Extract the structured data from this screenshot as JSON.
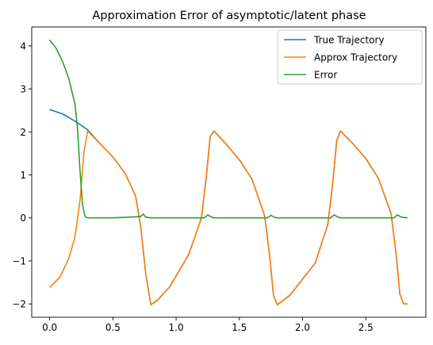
{
  "chart_data": {
    "type": "line",
    "title": "Approximation Error of asymptotic/latent phase",
    "xlabel": "",
    "ylabel": "",
    "xlim": [
      -0.142,
      2.975
    ],
    "ylim": [
      -2.31,
      4.44
    ],
    "xticks": [
      0.0,
      0.5,
      1.0,
      1.5,
      2.0,
      2.5
    ],
    "xtick_labels": [
      "0.0",
      "0.5",
      "1.0",
      "1.5",
      "2.0",
      "2.5"
    ],
    "yticks": [
      -2,
      -1,
      0,
      1,
      2,
      3,
      4
    ],
    "ytick_labels": [
      "−2",
      "−1",
      "0",
      "1",
      "2",
      "3",
      "4"
    ],
    "grid": false,
    "legend_position": "top-right",
    "series": [
      {
        "name": "True Trajectory",
        "color": "#1f77b4",
        "x": [
          0.0,
          0.1,
          0.2,
          0.3,
          0.4,
          0.5,
          0.6,
          0.68,
          0.72,
          0.76,
          0.8,
          0.85,
          0.95,
          1.1,
          1.2,
          1.24,
          1.27,
          1.3,
          1.4,
          1.5,
          1.6,
          1.7,
          1.74,
          1.77,
          1.8,
          1.9,
          2.1,
          2.2,
          2.24,
          2.27,
          2.3,
          2.4,
          2.5,
          2.6,
          2.7,
          2.74,
          2.77,
          2.8,
          2.83
        ],
        "y": [
          2.52,
          2.42,
          2.25,
          2.05,
          1.72,
          1.42,
          1.02,
          0.5,
          -0.2,
          -1.3,
          -2.02,
          -1.92,
          -1.6,
          -0.85,
          0.0,
          1.0,
          1.9,
          2.02,
          1.7,
          1.35,
          0.9,
          0.05,
          -0.9,
          -1.8,
          -2.02,
          -1.8,
          -1.05,
          -0.15,
          0.85,
          1.8,
          2.02,
          1.72,
          1.38,
          0.92,
          0.1,
          -0.85,
          -1.78,
          -2.0,
          -2.0
        ]
      },
      {
        "name": "Approx Trajectory",
        "color": "#ff7f0e",
        "x": [
          0.0,
          0.08,
          0.15,
          0.2,
          0.24,
          0.27,
          0.3,
          0.4,
          0.5,
          0.6,
          0.68,
          0.72,
          0.76,
          0.8,
          0.85,
          0.95,
          1.1,
          1.2,
          1.24,
          1.27,
          1.3,
          1.4,
          1.5,
          1.6,
          1.7,
          1.74,
          1.77,
          1.8,
          1.9,
          2.1,
          2.2,
          2.24,
          2.27,
          2.3,
          2.4,
          2.5,
          2.6,
          2.7,
          2.74,
          2.77,
          2.8,
          2.83
        ],
        "y": [
          -1.62,
          -1.38,
          -0.95,
          -0.45,
          0.4,
          1.5,
          2.02,
          1.72,
          1.42,
          1.02,
          0.5,
          -0.2,
          -1.3,
          -2.02,
          -1.92,
          -1.6,
          -0.85,
          0.0,
          1.0,
          1.9,
          2.02,
          1.7,
          1.35,
          0.9,
          0.05,
          -0.9,
          -1.8,
          -2.02,
          -1.8,
          -1.05,
          -0.15,
          0.85,
          1.8,
          2.02,
          1.72,
          1.38,
          0.92,
          0.1,
          -0.85,
          -1.78,
          -2.0,
          -2.0
        ]
      },
      {
        "name": "Error",
        "color": "#2ca02c",
        "x": [
          0.0,
          0.05,
          0.1,
          0.15,
          0.2,
          0.22,
          0.24,
          0.26,
          0.28,
          0.3,
          0.5,
          0.72,
          0.74,
          0.76,
          0.8,
          1.22,
          1.25,
          1.28,
          1.3,
          1.72,
          1.75,
          1.78,
          1.8,
          2.22,
          2.25,
          2.28,
          2.3,
          2.72,
          2.75,
          2.78,
          2.83
        ],
        "y": [
          4.14,
          3.95,
          3.65,
          3.25,
          2.65,
          2.1,
          1.1,
          0.3,
          0.03,
          0.0,
          0.0,
          0.03,
          0.09,
          0.02,
          0.0,
          0.0,
          0.07,
          0.02,
          0.0,
          0.0,
          0.06,
          0.01,
          0.0,
          0.0,
          0.07,
          0.02,
          0.0,
          0.0,
          0.07,
          0.02,
          0.0
        ]
      }
    ]
  }
}
